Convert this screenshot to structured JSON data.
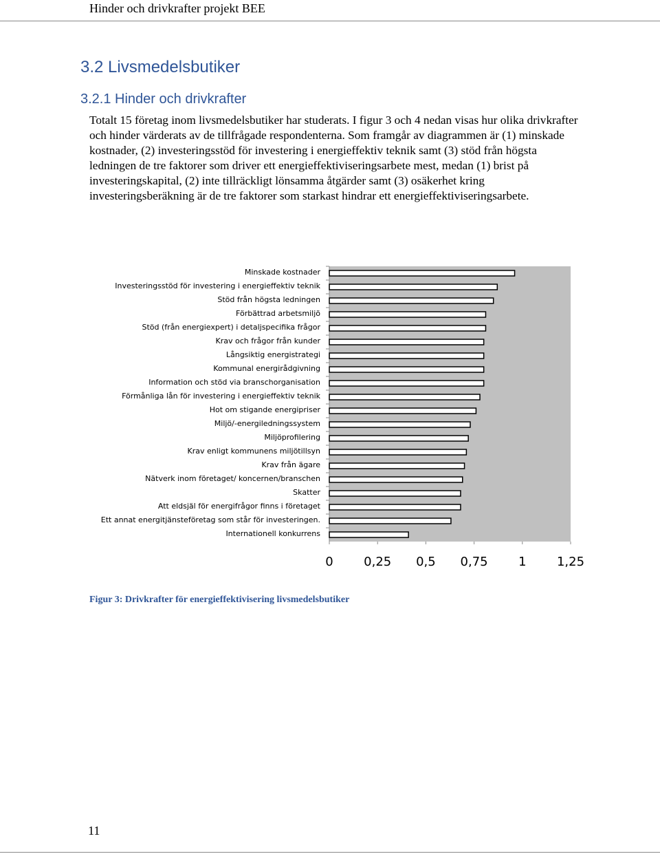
{
  "header": {
    "title": "Hinder och drivkrafter projekt BEE"
  },
  "section": {
    "heading": "3.2 Livsmedelsbutiker",
    "subheading": "3.2.1 Hinder och drivkrafter",
    "paragraph": "Totalt 15 företag inom livsmedelsbutiker har studerats. I figur 3 och 4 nedan visas hur olika drivkrafter och hinder värderats av de tillfrågade respondenterna. Som framgår av diagrammen är (1) minskade kostnader, (2) investeringsstöd för investering i energieffektiv teknik samt (3) stöd från högsta ledningen de tre faktorer som driver ett energieffektiviseringsarbete mest, medan (1) brist på investeringskapital, (2) inte tillräckligt lönsamma åtgärder samt (3) osäkerhet kring investeringsberäkning är de tre faktorer som starkast hindrar ett energieffektiviseringsarbete."
  },
  "chart_data": {
    "type": "hbar",
    "categories": [
      "Minskade kostnader",
      "Investeringsstöd för investering i energieffektiv teknik",
      "Stöd från högsta ledningen",
      "Förbättrad arbetsmiljö",
      "Stöd (från energiexpert) i detaljspecifika frågor",
      "Krav och frågor från kunder",
      "Långsiktig energistrategi",
      "Kommunal energirådgivning",
      "Information och stöd via branschorganisation",
      "Förmånliga lån för investering i energieffektiv teknik",
      "Hot om stigande energipriser",
      "Miljö/-energiledningssystem",
      "Miljöprofilering",
      "Krav enligt kommunens miljötillsyn",
      "Krav från ägare",
      "Nätverk inom företaget/ koncernen/branschen",
      "Skatter",
      "Att eldsjäl för energifrågor finns i företaget",
      "Ett annat energitjänsteföretag som står för investeringen.",
      "Internationell konkurrens"
    ],
    "values": [
      0.96,
      0.87,
      0.85,
      0.81,
      0.81,
      0.8,
      0.8,
      0.8,
      0.8,
      0.78,
      0.76,
      0.73,
      0.72,
      0.71,
      0.7,
      0.69,
      0.68,
      0.68,
      0.63,
      0.41
    ],
    "color": "#ffffff",
    "background": "#c0c0c0",
    "xlim": [
      0,
      1.25
    ],
    "xticks": [
      0,
      {
        "value": 0.25,
        "label": "0,25"
      },
      {
        "value": 0.5,
        "label": "0,5"
      },
      {
        "value": 0.75,
        "label": "0,75"
      },
      1,
      {
        "value": 1.25,
        "label": "1,25"
      }
    ]
  },
  "caption": "Figur 3: Drivkrafter för energieffektivisering livsmedelsbutiker",
  "footer": {
    "page_number": "11"
  }
}
